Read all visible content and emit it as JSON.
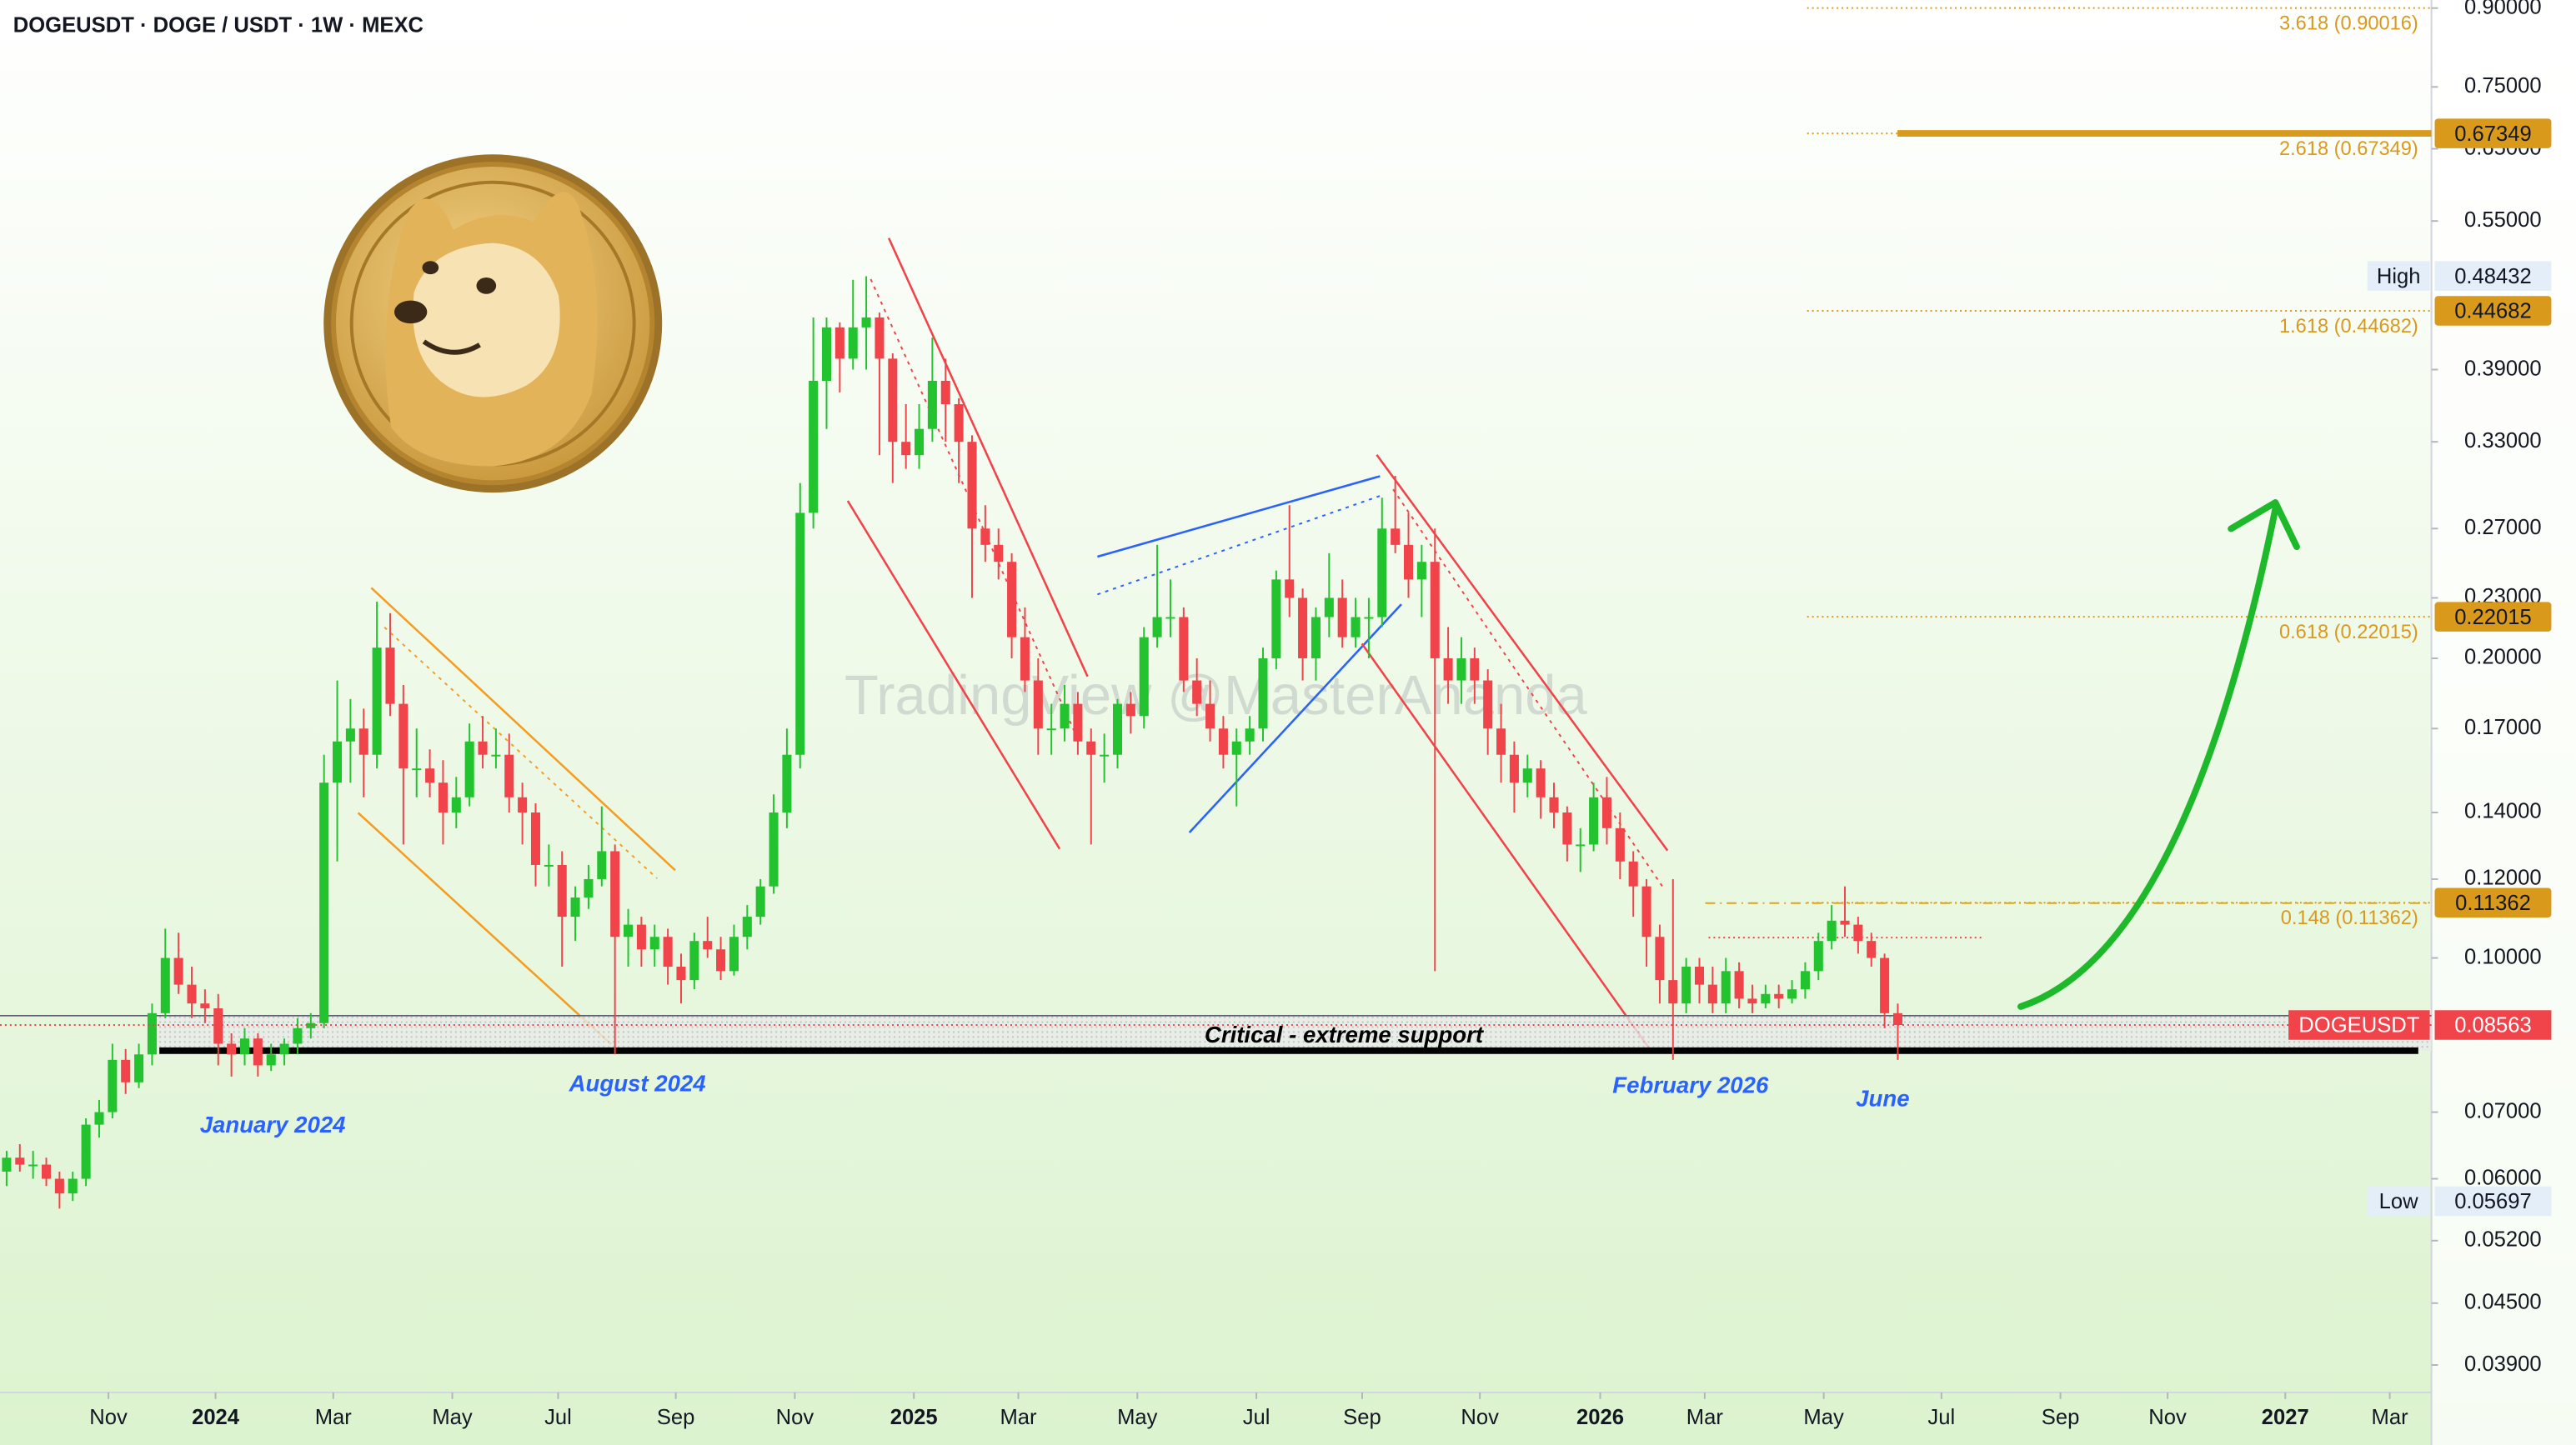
{
  "title": "DOGEUSDT · DOGE / USDT · 1W · MEXC",
  "watermark": "TradingView @MasterAnanda",
  "chart_data": {
    "type": "candlestick",
    "categories": [
      null,
      null,
      null,
      null,
      null,
      null,
      null,
      null,
      null,
      null,
      null,
      null,
      null,
      null,
      null,
      null,
      null,
      null,
      null,
      null,
      null,
      null,
      null,
      null,
      null,
      null,
      null,
      null,
      null,
      null,
      null,
      null,
      null,
      null,
      null,
      null,
      null,
      null,
      null,
      null,
      null,
      null,
      null,
      null,
      null,
      null,
      null,
      null,
      null,
      null,
      null,
      null,
      null,
      null,
      null,
      null,
      null,
      null,
      null,
      null,
      null,
      null,
      null,
      null,
      null,
      null,
      null,
      null,
      null,
      null,
      null,
      null,
      null,
      null,
      null,
      null,
      null,
      null,
      null,
      null,
      null,
      null,
      null,
      null,
      null,
      null,
      null,
      null,
      null,
      null,
      null,
      null,
      null,
      null,
      null,
      null,
      null,
      null,
      null,
      null,
      null,
      null,
      null,
      null,
      null,
      null,
      null,
      null,
      null,
      null,
      null,
      null,
      null,
      null,
      null,
      null,
      null,
      null,
      null,
      null,
      null,
      null,
      null,
      null,
      null,
      null,
      null,
      null,
      null,
      null,
      null,
      null,
      null,
      null,
      null,
      null,
      null,
      null,
      null,
      null,
      null,
      null,
      null,
      null
    ],
    "series": [
      {
        "name": "DOGEUSDT",
        "up_color": "#22c32e",
        "down_color": "#f0434a",
        "ohlc": [
          [
            0.061,
            0.064,
            0.059,
            0.063
          ],
          [
            0.063,
            0.065,
            0.061,
            0.062
          ],
          [
            0.062,
            0.064,
            0.06,
            0.062
          ],
          [
            0.062,
            0.063,
            0.059,
            0.06
          ],
          [
            0.06,
            0.061,
            0.056,
            0.058
          ],
          [
            0.058,
            0.061,
            0.057,
            0.06
          ],
          [
            0.06,
            0.069,
            0.059,
            0.068
          ],
          [
            0.068,
            0.072,
            0.066,
            0.07
          ],
          [
            0.07,
            0.082,
            0.069,
            0.079
          ],
          [
            0.079,
            0.081,
            0.073,
            0.075
          ],
          [
            0.075,
            0.082,
            0.074,
            0.08
          ],
          [
            0.08,
            0.09,
            0.078,
            0.088
          ],
          [
            0.088,
            0.107,
            0.087,
            0.1
          ],
          [
            0.1,
            0.106,
            0.092,
            0.094
          ],
          [
            0.094,
            0.098,
            0.087,
            0.09
          ],
          [
            0.09,
            0.093,
            0.086,
            0.089
          ],
          [
            0.089,
            0.092,
            0.078,
            0.082
          ],
          [
            0.082,
            0.084,
            0.076,
            0.08
          ],
          [
            0.08,
            0.085,
            0.078,
            0.083
          ],
          [
            0.083,
            0.084,
            0.076,
            0.078
          ],
          [
            0.078,
            0.082,
            0.077,
            0.08
          ],
          [
            0.08,
            0.083,
            0.078,
            0.082
          ],
          [
            0.082,
            0.087,
            0.08,
            0.085
          ],
          [
            0.085,
            0.088,
            0.083,
            0.086
          ],
          [
            0.086,
            0.16,
            0.085,
            0.15
          ],
          [
            0.15,
            0.19,
            0.125,
            0.165
          ],
          [
            0.165,
            0.182,
            0.15,
            0.17
          ],
          [
            0.17,
            0.178,
            0.145,
            0.16
          ],
          [
            0.16,
            0.228,
            0.155,
            0.205
          ],
          [
            0.205,
            0.222,
            0.175,
            0.18
          ],
          [
            0.18,
            0.188,
            0.13,
            0.155
          ],
          [
            0.155,
            0.17,
            0.145,
            0.155
          ],
          [
            0.155,
            0.162,
            0.145,
            0.15
          ],
          [
            0.15,
            0.158,
            0.13,
            0.14
          ],
          [
            0.14,
            0.152,
            0.135,
            0.145
          ],
          [
            0.145,
            0.172,
            0.142,
            0.165
          ],
          [
            0.165,
            0.175,
            0.155,
            0.16
          ],
          [
            0.16,
            0.17,
            0.155,
            0.16
          ],
          [
            0.16,
            0.168,
            0.14,
            0.145
          ],
          [
            0.145,
            0.15,
            0.13,
            0.14
          ],
          [
            0.14,
            0.143,
            0.118,
            0.124
          ],
          [
            0.124,
            0.13,
            0.118,
            0.124
          ],
          [
            0.124,
            0.128,
            0.098,
            0.11
          ],
          [
            0.11,
            0.118,
            0.104,
            0.115
          ],
          [
            0.115,
            0.124,
            0.112,
            0.12
          ],
          [
            0.12,
            0.142,
            0.118,
            0.128
          ],
          [
            0.128,
            0.13,
            0.08,
            0.105
          ],
          [
            0.105,
            0.112,
            0.098,
            0.108
          ],
          [
            0.108,
            0.11,
            0.098,
            0.102
          ],
          [
            0.102,
            0.108,
            0.098,
            0.105
          ],
          [
            0.105,
            0.107,
            0.094,
            0.098
          ],
          [
            0.098,
            0.101,
            0.09,
            0.095
          ],
          [
            0.095,
            0.106,
            0.093,
            0.104
          ],
          [
            0.104,
            0.11,
            0.1,
            0.102
          ],
          [
            0.102,
            0.105,
            0.095,
            0.097
          ],
          [
            0.097,
            0.108,
            0.096,
            0.105
          ],
          [
            0.105,
            0.113,
            0.102,
            0.11
          ],
          [
            0.11,
            0.12,
            0.108,
            0.118
          ],
          [
            0.118,
            0.146,
            0.116,
            0.14
          ],
          [
            0.14,
            0.17,
            0.135,
            0.16
          ],
          [
            0.16,
            0.3,
            0.155,
            0.28
          ],
          [
            0.28,
            0.44,
            0.27,
            0.38
          ],
          [
            0.38,
            0.44,
            0.34,
            0.43
          ],
          [
            0.43,
            0.435,
            0.37,
            0.4
          ],
          [
            0.4,
            0.48,
            0.39,
            0.43
          ],
          [
            0.43,
            0.484,
            0.39,
            0.44
          ],
          [
            0.44,
            0.445,
            0.32,
            0.4
          ],
          [
            0.4,
            0.405,
            0.3,
            0.33
          ],
          [
            0.33,
            0.36,
            0.31,
            0.32
          ],
          [
            0.32,
            0.36,
            0.31,
            0.34
          ],
          [
            0.34,
            0.42,
            0.33,
            0.38
          ],
          [
            0.38,
            0.4,
            0.33,
            0.36
          ],
          [
            0.36,
            0.365,
            0.3,
            0.33
          ],
          [
            0.33,
            0.335,
            0.23,
            0.27
          ],
          [
            0.27,
            0.285,
            0.25,
            0.26
          ],
          [
            0.26,
            0.27,
            0.24,
            0.25
          ],
          [
            0.25,
            0.255,
            0.2,
            0.21
          ],
          [
            0.21,
            0.225,
            0.185,
            0.19
          ],
          [
            0.19,
            0.2,
            0.16,
            0.17
          ],
          [
            0.17,
            0.18,
            0.16,
            0.17
          ],
          [
            0.17,
            0.188,
            0.165,
            0.18
          ],
          [
            0.18,
            0.185,
            0.16,
            0.165
          ],
          [
            0.165,
            0.17,
            0.13,
            0.16
          ],
          [
            0.16,
            0.168,
            0.15,
            0.16
          ],
          [
            0.16,
            0.182,
            0.155,
            0.18
          ],
          [
            0.18,
            0.185,
            0.168,
            0.175
          ],
          [
            0.175,
            0.215,
            0.17,
            0.21
          ],
          [
            0.21,
            0.26,
            0.205,
            0.22
          ],
          [
            0.22,
            0.24,
            0.21,
            0.22
          ],
          [
            0.22,
            0.225,
            0.185,
            0.19
          ],
          [
            0.19,
            0.2,
            0.175,
            0.18
          ],
          [
            0.18,
            0.19,
            0.165,
            0.17
          ],
          [
            0.17,
            0.175,
            0.155,
            0.16
          ],
          [
            0.16,
            0.17,
            0.142,
            0.165
          ],
          [
            0.165,
            0.175,
            0.16,
            0.17
          ],
          [
            0.17,
            0.205,
            0.165,
            0.2
          ],
          [
            0.2,
            0.245,
            0.195,
            0.24
          ],
          [
            0.24,
            0.285,
            0.22,
            0.23
          ],
          [
            0.23,
            0.235,
            0.19,
            0.2
          ],
          [
            0.2,
            0.225,
            0.19,
            0.22
          ],
          [
            0.22,
            0.255,
            0.21,
            0.23
          ],
          [
            0.23,
            0.24,
            0.205,
            0.21
          ],
          [
            0.21,
            0.23,
            0.205,
            0.22
          ],
          [
            0.22,
            0.23,
            0.2,
            0.22
          ],
          [
            0.22,
            0.29,
            0.215,
            0.27
          ],
          [
            0.27,
            0.305,
            0.255,
            0.26
          ],
          [
            0.26,
            0.28,
            0.23,
            0.24
          ],
          [
            0.24,
            0.26,
            0.22,
            0.25
          ],
          [
            0.25,
            0.27,
            0.097,
            0.2
          ],
          [
            0.2,
            0.215,
            0.18,
            0.19
          ],
          [
            0.19,
            0.21,
            0.18,
            0.2
          ],
          [
            0.2,
            0.205,
            0.18,
            0.19
          ],
          [
            0.19,
            0.195,
            0.16,
            0.17
          ],
          [
            0.17,
            0.18,
            0.15,
            0.16
          ],
          [
            0.16,
            0.165,
            0.14,
            0.15
          ],
          [
            0.15,
            0.16,
            0.145,
            0.155
          ],
          [
            0.155,
            0.158,
            0.138,
            0.145
          ],
          [
            0.145,
            0.15,
            0.135,
            0.14
          ],
          [
            0.14,
            0.142,
            0.125,
            0.13
          ],
          [
            0.13,
            0.135,
            0.122,
            0.13
          ],
          [
            0.13,
            0.15,
            0.128,
            0.145
          ],
          [
            0.145,
            0.152,
            0.13,
            0.135
          ],
          [
            0.135,
            0.14,
            0.12,
            0.125
          ],
          [
            0.125,
            0.128,
            0.11,
            0.118
          ],
          [
            0.118,
            0.12,
            0.098,
            0.105
          ],
          [
            0.105,
            0.108,
            0.09,
            0.095
          ],
          [
            0.095,
            0.12,
            0.079,
            0.09
          ],
          [
            0.09,
            0.1,
            0.088,
            0.098
          ],
          [
            0.098,
            0.1,
            0.09,
            0.094
          ],
          [
            0.094,
            0.098,
            0.088,
            0.09
          ],
          [
            0.09,
            0.1,
            0.088,
            0.097
          ],
          [
            0.097,
            0.099,
            0.089,
            0.091
          ],
          [
            0.091,
            0.094,
            0.088,
            0.09
          ],
          [
            0.09,
            0.094,
            0.089,
            0.092
          ],
          [
            0.092,
            0.094,
            0.089,
            0.091
          ],
          [
            0.091,
            0.095,
            0.09,
            0.093
          ],
          [
            0.093,
            0.099,
            0.091,
            0.097
          ],
          [
            0.097,
            0.106,
            0.095,
            0.104
          ],
          [
            0.104,
            0.113,
            0.102,
            0.109
          ],
          [
            0.109,
            0.118,
            0.105,
            0.108
          ],
          [
            0.108,
            0.11,
            0.101,
            0.104
          ],
          [
            0.104,
            0.106,
            0.098,
            0.1
          ],
          [
            0.1,
            0.101,
            0.085,
            0.088
          ],
          [
            0.088,
            0.09,
            0.079,
            0.08563
          ]
        ]
      }
    ],
    "xlim": [
      -0.5,
      183.35
    ],
    "xticks": [
      {
        "value": 7.7,
        "label": "Nov"
      },
      {
        "value": 15.8,
        "label": "2024"
      },
      {
        "value": 24.7,
        "label": "Mar"
      },
      {
        "value": 33.7,
        "label": "May"
      },
      {
        "value": 41.7,
        "label": "Jul"
      },
      {
        "value": 50.6,
        "label": "Sep"
      },
      {
        "value": 59.6,
        "label": "Nov"
      },
      {
        "value": 68.6,
        "label": "2025"
      },
      {
        "value": 76.5,
        "label": "Mar"
      },
      {
        "value": 85.5,
        "label": "May"
      },
      {
        "value": 94.5,
        "label": "Jul"
      },
      {
        "value": 102.5,
        "label": "Sep"
      },
      {
        "value": 111.4,
        "label": "Nov"
      },
      {
        "value": 120.5,
        "label": "2026"
      },
      {
        "value": 128.4,
        "label": "Mar"
      },
      {
        "value": 137.4,
        "label": "May"
      },
      {
        "value": 146.3,
        "label": "Jul"
      },
      {
        "value": 155.3,
        "label": "Sep"
      },
      {
        "value": 163.4,
        "label": "Nov"
      },
      {
        "value": 172.3,
        "label": "2027"
      },
      {
        "value": 180.2,
        "label": "Mar"
      }
    ],
    "ylim": [
      0.0366,
      0.917
    ],
    "log_scale": true,
    "yticks": [
      {
        "value": 0.9,
        "label": "0.90000"
      },
      {
        "value": 0.75,
        "label": "0.75000"
      },
      {
        "value": 0.65,
        "label": "0.65000"
      },
      {
        "value": 0.55,
        "label": "0.55000"
      },
      {
        "value": 0.39,
        "label": "0.39000"
      },
      {
        "value": 0.33,
        "label": "0.33000"
      },
      {
        "value": 0.27,
        "label": "0.27000"
      },
      {
        "value": 0.23,
        "label": "0.23000"
      },
      {
        "value": 0.2,
        "label": "0.20000"
      },
      {
        "value": 0.17,
        "label": "0.17000"
      },
      {
        "value": 0.14,
        "label": "0.14000"
      },
      {
        "value": 0.12,
        "label": "0.12000"
      },
      {
        "value": 0.1,
        "label": "0.10000"
      },
      {
        "value": 0.07,
        "label": "0.07000"
      },
      {
        "value": 0.06,
        "label": "0.06000"
      },
      {
        "value": 0.052,
        "label": "0.05200"
      },
      {
        "value": 0.045,
        "label": "0.04500"
      },
      {
        "value": 0.039,
        "label": "0.03900"
      }
    ],
    "last_price": 0.08563,
    "high": {
      "label": "High",
      "value": 0.48432
    },
    "low": {
      "label": "Low",
      "value": 0.05697
    },
    "fib_color": "#d99a1c",
    "fib_levels": [
      {
        "value": 0.90016,
        "label": "3.618 (0.90016)",
        "tag": false,
        "emphasis": false
      },
      {
        "value": 0.67349,
        "label": "2.618 (0.67349)",
        "tag": true,
        "emphasis": true
      },
      {
        "value": 0.44682,
        "label": "1.618 (0.44682)",
        "tag": true,
        "emphasis": false
      },
      {
        "value": 0.22015,
        "label": "0.618 (0.22015)",
        "tag": true,
        "emphasis": false
      },
      {
        "value": 0.11362,
        "label": "0.148 (0.11362)",
        "tag": true,
        "emphasis": false
      }
    ],
    "support": {
      "label": "Critical - extreme support",
      "low": 0.0807,
      "high": 0.0875
    },
    "annotations": [
      "January 2024",
      "August 2024",
      "February 2026",
      "June"
    ]
  }
}
